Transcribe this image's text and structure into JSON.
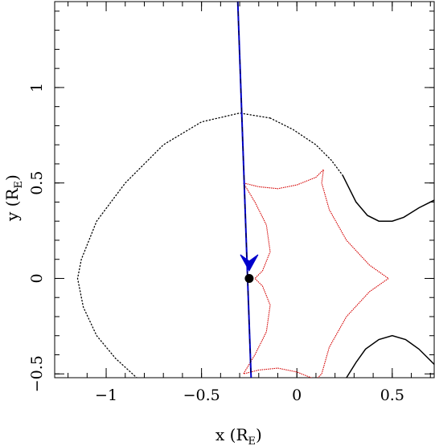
{
  "chart_data": {
    "type": "line",
    "title": "",
    "xlabel": "x (R",
    "xlabel_sub": "E",
    "xlabel_close": ")",
    "ylabel": "y (R",
    "ylabel_sub": "E",
    "ylabel_close": ")",
    "xlim": [
      -1.27,
      0.72
    ],
    "ylim": [
      -0.52,
      1.45
    ],
    "grid": false,
    "x_ticks": [
      {
        "value": -1,
        "label": "−1"
      },
      {
        "value": -0.5,
        "label": "−0.5"
      },
      {
        "value": 0,
        "label": "0"
      },
      {
        "value": 0.5,
        "label": "0.5"
      }
    ],
    "y_ticks": [
      {
        "value": -0.5,
        "label": "−0.5"
      },
      {
        "value": 0,
        "label": "0"
      },
      {
        "value": 0.5,
        "label": "0.5"
      },
      {
        "value": 1,
        "label": "1"
      }
    ],
    "minor_step": 0.1,
    "colors": {
      "critical_curve": "#000000",
      "caustic": "#d40000",
      "trajectory": "#0000cc",
      "trajectory_dash": "#000000",
      "source": "#000000"
    },
    "critical_curve_dotted": [
      [
        -0.14,
        0.84
      ],
      [
        -0.3,
        0.866
      ],
      [
        -0.5,
        0.82
      ],
      [
        -0.7,
        0.7
      ],
      [
        -0.9,
        0.5
      ],
      [
        -1.05,
        0.3
      ],
      [
        -1.13,
        0.1
      ],
      [
        -1.15,
        0.0
      ],
      [
        -1.12,
        -0.15
      ],
      [
        -1.05,
        -0.3
      ],
      [
        -0.95,
        -0.42
      ],
      [
        -0.84,
        -0.52
      ]
    ],
    "critical_curve_dotted_upper": [
      [
        -0.14,
        0.84
      ],
      [
        -0.02,
        0.78
      ],
      [
        0.1,
        0.7
      ],
      [
        0.18,
        0.62
      ],
      [
        0.24,
        0.54
      ]
    ],
    "critical_curve_solid_upper": [
      [
        0.24,
        0.54
      ],
      [
        0.27,
        0.48
      ],
      [
        0.31,
        0.4
      ],
      [
        0.37,
        0.33
      ],
      [
        0.43,
        0.3
      ],
      [
        0.5,
        0.3
      ],
      [
        0.56,
        0.32
      ],
      [
        0.64,
        0.37
      ],
      [
        0.72,
        0.41
      ]
    ],
    "critical_curve_solid_lower": [
      [
        0.26,
        -0.52
      ],
      [
        0.31,
        -0.44
      ],
      [
        0.36,
        -0.37
      ],
      [
        0.43,
        -0.32
      ],
      [
        0.5,
        -0.3
      ],
      [
        0.57,
        -0.32
      ],
      [
        0.64,
        -0.37
      ],
      [
        0.7,
        -0.43
      ],
      [
        0.72,
        -0.45
      ]
    ],
    "caustic_curve": [
      [
        -0.28,
        0.5
      ],
      [
        -0.2,
        0.48
      ],
      [
        -0.1,
        0.47
      ],
      [
        0.0,
        0.49
      ],
      [
        0.1,
        0.53
      ],
      [
        0.14,
        0.57
      ],
      [
        0.13,
        0.5
      ],
      [
        0.17,
        0.36
      ],
      [
        0.26,
        0.2
      ],
      [
        0.38,
        0.07
      ],
      [
        0.48,
        0.0
      ],
      [
        0.38,
        -0.07
      ],
      [
        0.26,
        -0.2
      ],
      [
        0.17,
        -0.36
      ],
      [
        0.13,
        -0.5
      ],
      [
        0.1,
        -0.53
      ],
      [
        0.0,
        -0.49
      ],
      [
        -0.1,
        -0.47
      ],
      [
        -0.2,
        -0.48
      ],
      [
        -0.28,
        -0.5
      ],
      [
        -0.22,
        -0.4
      ],
      [
        -0.16,
        -0.28
      ],
      [
        -0.14,
        -0.14
      ],
      [
        -0.18,
        -0.04
      ],
      [
        -0.22,
        0.0
      ],
      [
        -0.18,
        0.04
      ],
      [
        -0.14,
        0.14
      ],
      [
        -0.16,
        0.28
      ],
      [
        -0.22,
        0.4
      ],
      [
        -0.28,
        0.5
      ]
    ],
    "trajectory": [
      [
        -0.31,
        1.45
      ],
      [
        -0.24,
        -0.52
      ]
    ],
    "arrow": {
      "tip": [
        -0.25,
        0.04
      ],
      "direction": "down"
    },
    "source_point": [
      -0.25,
      0.0
    ]
  }
}
